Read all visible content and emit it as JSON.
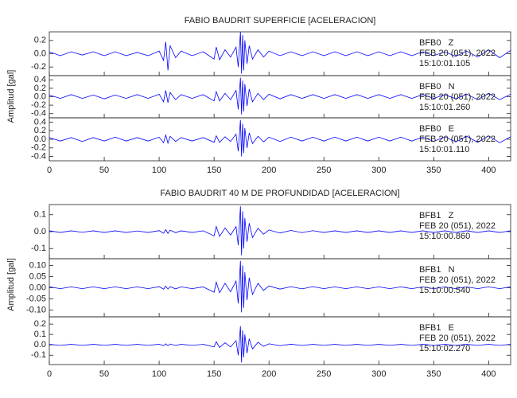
{
  "chart_data": [
    {
      "type": "line",
      "title": "FABIO BAUDRIT SUPERFICIE [ACELERACION]",
      "y_label": "Amplitud [gal]",
      "xlim": [
        0,
        420
      ],
      "xticks": [
        0,
        50,
        100,
        150,
        200,
        250,
        300,
        350,
        400
      ],
      "x": [
        0,
        10,
        20,
        30,
        40,
        50,
        60,
        70,
        80,
        90,
        100,
        104,
        106,
        108,
        110,
        115,
        120,
        130,
        140,
        150,
        152,
        155,
        160,
        165,
        170,
        172,
        174,
        175,
        176,
        177,
        178,
        180,
        182,
        185,
        190,
        195,
        200,
        210,
        220,
        230,
        240,
        250,
        260,
        270,
        280,
        290,
        300,
        310,
        320,
        330,
        340,
        350,
        360,
        370,
        380,
        390,
        400,
        410,
        420
      ],
      "series": [
        {
          "name": "BFB0   Z",
          "date": "FEB 20 (051), 2022",
          "time": "15:10:01.105",
          "color": "#0000ff",
          "ylim": [
            -0.33,
            0.33
          ],
          "yticks": [
            0.2,
            {
              "value": 0,
              "label": "0.0"
            },
            -0.2
          ],
          "values": [
            0.03,
            -0.03,
            0.03,
            -0.02,
            0.03,
            -0.03,
            0.03,
            -0.03,
            0.02,
            -0.03,
            0.04,
            -0.1,
            0.18,
            -0.25,
            0.12,
            -0.06,
            0.04,
            -0.03,
            0.03,
            -0.08,
            0.1,
            -0.09,
            0.06,
            -0.05,
            0.1,
            -0.2,
            0.33,
            -0.3,
            0.28,
            -0.25,
            0.2,
            -0.15,
            0.12,
            -0.08,
            0.06,
            -0.05,
            0.04,
            -0.03,
            0.03,
            -0.03,
            0.03,
            -0.03,
            0.03,
            -0.03,
            0.03,
            -0.03,
            0.03,
            -0.03,
            0.03,
            -0.03,
            0.03,
            -0.03,
            0.03,
            -0.04,
            0.04,
            -0.05,
            0.06,
            -0.06,
            0.05
          ]
        },
        {
          "name": "BFB0   N",
          "date": "FEB 20 (051), 2022",
          "time": "15:10:01.260",
          "color": "#0000ff",
          "ylim": [
            -0.5,
            0.5
          ],
          "yticks": [
            0.4,
            0.2,
            {
              "value": 0,
              "label": "0.0"
            },
            -0.2,
            -0.4
          ],
          "values": [
            0.04,
            -0.04,
            0.05,
            -0.04,
            0.04,
            -0.05,
            0.04,
            -0.04,
            0.05,
            -0.04,
            0.06,
            -0.12,
            0.15,
            -0.14,
            0.1,
            -0.07,
            0.05,
            -0.04,
            0.05,
            -0.1,
            0.12,
            -0.1,
            0.08,
            -0.07,
            0.15,
            -0.3,
            0.45,
            -0.42,
            0.38,
            -0.35,
            0.3,
            -0.22,
            0.18,
            -0.12,
            0.08,
            -0.07,
            0.06,
            -0.05,
            0.05,
            -0.04,
            0.05,
            -0.04,
            0.05,
            -0.04,
            0.05,
            -0.04,
            0.05,
            -0.04,
            0.05,
            -0.04,
            0.05,
            -0.04,
            0.05,
            -0.05,
            0.06,
            -0.07,
            0.08,
            -0.07,
            0.06
          ]
        },
        {
          "name": "BFB0   E",
          "date": "FEB 20 (051), 2022",
          "time": "15:10:01.110",
          "color": "#0000ff",
          "ylim": [
            -0.5,
            0.5
          ],
          "yticks": [
            0.4,
            0.2,
            {
              "value": 0,
              "label": "0.0"
            },
            -0.2,
            -0.4
          ],
          "values": [
            0.04,
            -0.04,
            0.04,
            -0.05,
            0.04,
            -0.04,
            0.05,
            -0.04,
            0.04,
            -0.04,
            0.05,
            -0.08,
            0.1,
            -0.09,
            0.07,
            -0.05,
            0.04,
            -0.04,
            0.04,
            -0.07,
            0.08,
            -0.07,
            0.06,
            -0.05,
            0.12,
            -0.28,
            0.45,
            -0.4,
            0.36,
            -0.32,
            0.26,
            -0.2,
            0.15,
            -0.1,
            0.07,
            -0.06,
            0.05,
            -0.05,
            0.05,
            -0.04,
            0.05,
            -0.04,
            0.05,
            -0.04,
            0.05,
            -0.04,
            0.05,
            -0.04,
            0.05,
            -0.04,
            0.05,
            -0.05,
            0.06,
            -0.06,
            0.07,
            -0.07,
            0.08,
            -0.08,
            0.06
          ]
        }
      ]
    },
    {
      "type": "line",
      "title": "FABIO BAUDRIT 40 M DE PROFUNDIDAD [ACELERACION]",
      "y_label": "Amplitud [gal]",
      "xlim": [
        0,
        420
      ],
      "xticks": [
        0,
        50,
        100,
        150,
        200,
        250,
        300,
        350,
        400
      ],
      "x": [
        0,
        10,
        20,
        30,
        40,
        50,
        60,
        70,
        80,
        90,
        100,
        104,
        106,
        108,
        110,
        115,
        120,
        130,
        140,
        150,
        152,
        155,
        160,
        165,
        170,
        172,
        174,
        175,
        176,
        177,
        178,
        180,
        182,
        185,
        190,
        195,
        200,
        210,
        220,
        230,
        240,
        250,
        260,
        270,
        280,
        290,
        300,
        310,
        320,
        330,
        340,
        350,
        360,
        370,
        380,
        390,
        400,
        410,
        420
      ],
      "series": [
        {
          "name": "BFB1   Z",
          "date": "FEB 20 (051), 2022",
          "time": "15:10:00.860",
          "color": "#0000ff",
          "ylim": [
            -0.16,
            0.16
          ],
          "yticks": [
            0.1,
            {
              "value": 0,
              "label": "0.0"
            },
            -0.1
          ],
          "values": [
            0.005,
            -0.005,
            0.005,
            -0.004,
            0.005,
            -0.005,
            0.005,
            -0.005,
            0.004,
            -0.005,
            0.006,
            -0.01,
            0.012,
            -0.011,
            0.009,
            -0.006,
            0.005,
            -0.005,
            0.005,
            -0.025,
            0.03,
            -0.028,
            0.022,
            -0.02,
            0.03,
            -0.08,
            0.15,
            -0.14,
            0.12,
            -0.1,
            0.08,
            -0.06,
            0.05,
            -0.035,
            0.02,
            -0.015,
            0.01,
            -0.008,
            0.007,
            -0.006,
            0.006,
            -0.005,
            0.005,
            -0.005,
            0.005,
            -0.005,
            0.005,
            -0.005,
            0.005,
            -0.005,
            0.005,
            -0.005,
            0.005,
            -0.005,
            0.005,
            -0.005,
            0.005,
            -0.005,
            0.005
          ]
        },
        {
          "name": "BFB1   N",
          "date": "FEB 20 (051), 2022",
          "time": "15:10:00.540",
          "color": "#0000ff",
          "ylim": [
            -0.13,
            0.13
          ],
          "yticks": [
            {
              "value": 0.1,
              "label": "0.10"
            },
            0.05,
            {
              "value": 0,
              "label": "0.00"
            },
            -0.05,
            {
              "value": -0.1,
              "label": "-0.10"
            }
          ],
          "values": [
            0.004,
            -0.004,
            0.004,
            -0.004,
            0.004,
            -0.004,
            0.004,
            -0.004,
            0.004,
            -0.004,
            0.005,
            -0.006,
            0.007,
            -0.006,
            0.005,
            -0.005,
            0.004,
            -0.004,
            0.004,
            -0.02,
            0.025,
            -0.022,
            0.02,
            -0.018,
            0.03,
            -0.07,
            0.12,
            -0.11,
            0.1,
            -0.09,
            0.07,
            -0.055,
            0.045,
            -0.03,
            0.02,
            -0.012,
            0.008,
            -0.006,
            0.005,
            -0.005,
            0.005,
            -0.004,
            0.004,
            -0.004,
            0.004,
            -0.004,
            0.004,
            -0.004,
            0.004,
            -0.004,
            0.004,
            -0.004,
            0.004,
            -0.004,
            0.004,
            -0.004,
            0.004,
            -0.004,
            0.004
          ]
        },
        {
          "name": "BFB1   E",
          "date": "FEB 20 (051), 2022",
          "time": "15:10:02.270",
          "color": "#0000ff",
          "ylim": [
            -0.19,
            0.27
          ],
          "yticks": [
            0.2,
            0.1,
            {
              "value": 0,
              "label": "0.0"
            },
            -0.1
          ],
          "values": [
            0.005,
            -0.005,
            0.005,
            -0.005,
            0.005,
            -0.005,
            0.005,
            -0.005,
            0.005,
            -0.005,
            0.006,
            -0.008,
            0.01,
            -0.009,
            0.008,
            -0.006,
            0.005,
            -0.005,
            0.005,
            -0.02,
            0.03,
            -0.025,
            0.02,
            -0.02,
            0.04,
            -0.1,
            0.18,
            -0.17,
            0.14,
            -0.12,
            0.1,
            -0.08,
            0.06,
            -0.04,
            0.025,
            -0.015,
            0.01,
            -0.008,
            0.006,
            -0.006,
            0.005,
            -0.005,
            0.005,
            -0.005,
            0.005,
            -0.005,
            0.005,
            -0.005,
            0.005,
            -0.005,
            0.005,
            -0.005,
            0.005,
            -0.005,
            0.005,
            -0.005,
            0.005,
            -0.005,
            0.005
          ]
        }
      ]
    }
  ]
}
